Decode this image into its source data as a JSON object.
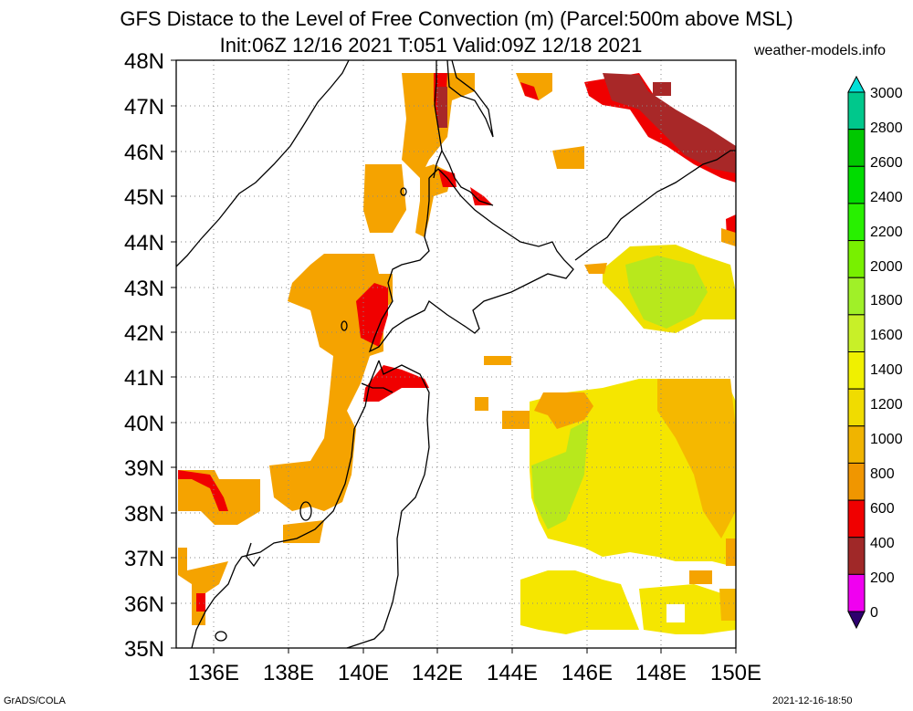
{
  "title_line1": "GFS Distace to the Level of Free Convection (m) (Parcel:500m above MSL)",
  "title_line2": "Init:06Z 12/16 2021 T:051 Valid:09Z 12/18 2021",
  "site": "weather-models.info",
  "footer_left": "GrADS/COLA",
  "footer_right": "2021-12-16-18:50",
  "map": {
    "lat_labels": [
      "48N",
      "47N",
      "46N",
      "45N",
      "44N",
      "43N",
      "42N",
      "41N",
      "40N",
      "39N",
      "38N",
      "37N",
      "36N",
      "35N"
    ],
    "lon_labels": [
      "136E",
      "138E",
      "140E",
      "142E",
      "144E",
      "146E",
      "148E",
      "150E"
    ]
  },
  "colorbar": {
    "labels": [
      "3000",
      "2800",
      "2600",
      "2400",
      "2200",
      "2000",
      "1800",
      "1600",
      "1400",
      "1200",
      "1000",
      "800",
      "600",
      "400",
      "200",
      "0"
    ],
    "colors": [
      "#00e0d8",
      "#00c88c",
      "#00c800",
      "#00dc00",
      "#28f000",
      "#78f000",
      "#a0f028",
      "#c8f028",
      "#f0f000",
      "#f0dc00",
      "#f0b400",
      "#f09600",
      "#f00000",
      "#a02828",
      "#f000f0",
      "#2d006e"
    ]
  },
  "field_colors": {
    "orange": "#f5a300",
    "darkorange": "#f59a00",
    "yellow": "#f5e600",
    "lightyellow": "#f0e000",
    "green": "#b8e81c",
    "red": "#f00000",
    "brown": "#a82828"
  }
}
